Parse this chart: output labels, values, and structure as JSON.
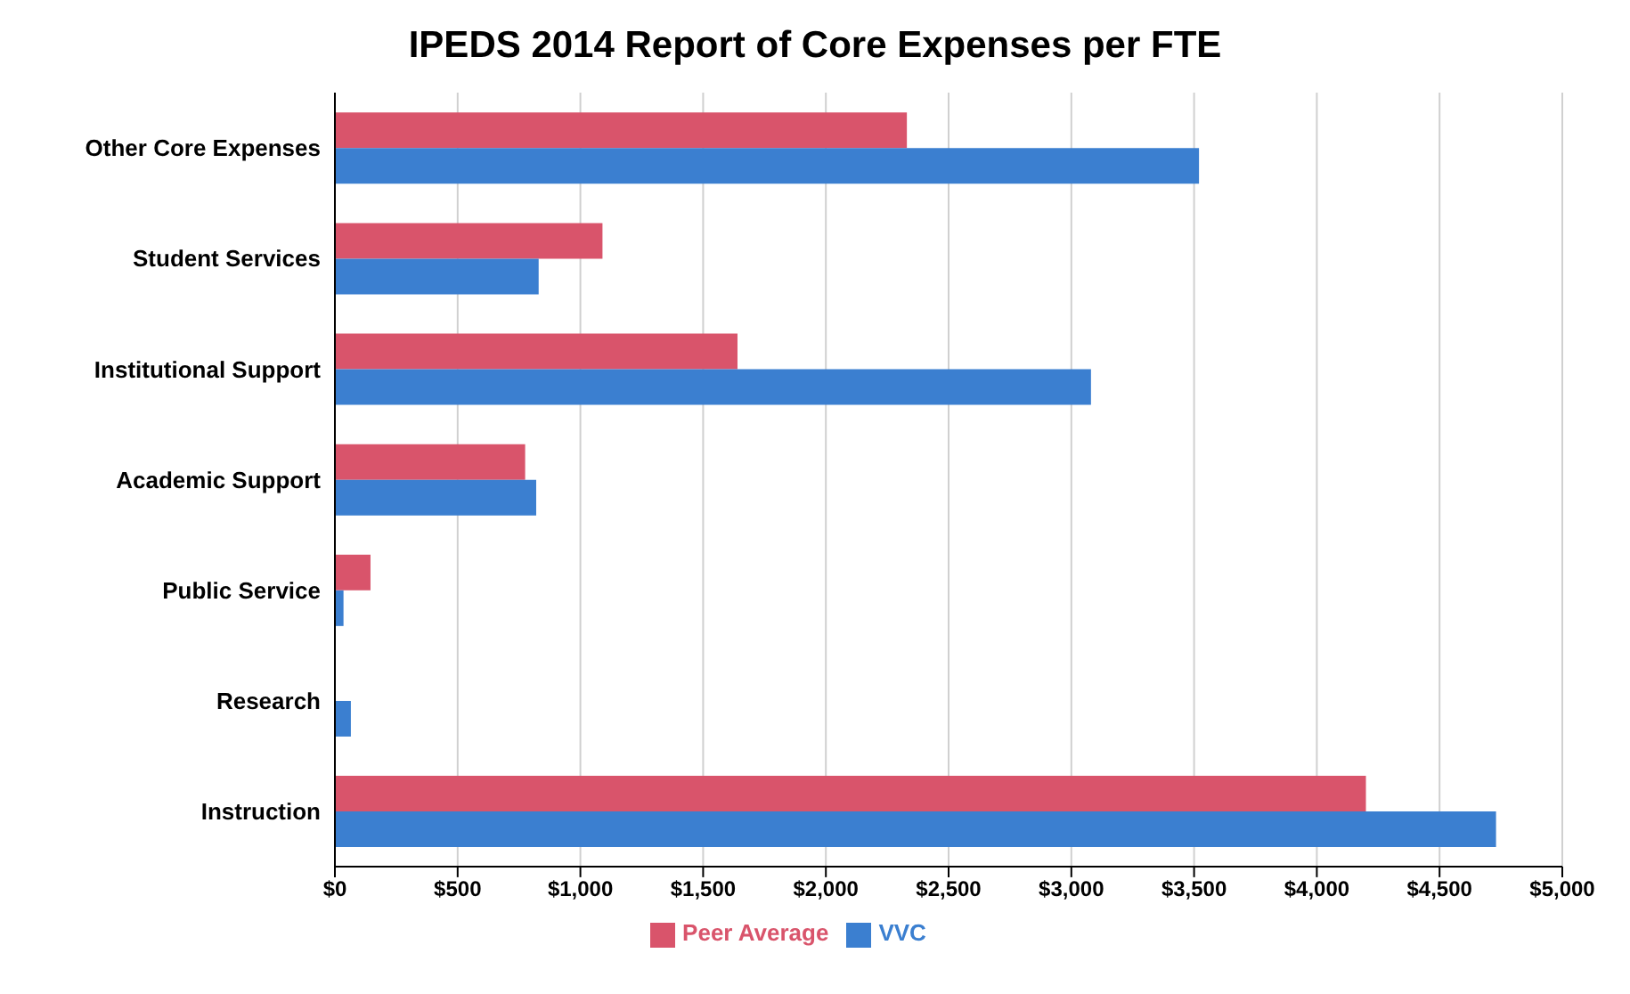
{
  "chart_data": {
    "type": "bar",
    "orientation": "horizontal",
    "title": "IPEDS 2014 Report of Core Expenses per FTE",
    "categories": [
      "Other Core Expenses",
      "Student Services",
      "Institutional Support",
      "Academic Support",
      "Public Service",
      "Research",
      "Instruction"
    ],
    "series": [
      {
        "name": "Peer Average",
        "color": "#d9546b",
        "values": [
          2330,
          1090,
          1640,
          775,
          145,
          null,
          4200
        ]
      },
      {
        "name": "VVC",
        "color": "#3b7fd0",
        "values": [
          3520,
          830,
          3080,
          820,
          35,
          65,
          4730
        ]
      }
    ],
    "xlim": [
      0,
      5000
    ],
    "xticks": [
      {
        "value": 0,
        "label": "$0"
      },
      {
        "value": 500,
        "label": "$500"
      },
      {
        "value": 1000,
        "label": "$1,000"
      },
      {
        "value": 1500,
        "label": "$1,500"
      },
      {
        "value": 2000,
        "label": "$2,000"
      },
      {
        "value": 2500,
        "label": "$2,500"
      },
      {
        "value": 3000,
        "label": "$3,000"
      },
      {
        "value": 3500,
        "label": "$3,500"
      },
      {
        "value": 4000,
        "label": "$4,000"
      },
      {
        "value": 4500,
        "label": "$4,500"
      },
      {
        "value": 5000,
        "label": "$5,000"
      }
    ],
    "grid": "x",
    "legend": "bottom"
  }
}
